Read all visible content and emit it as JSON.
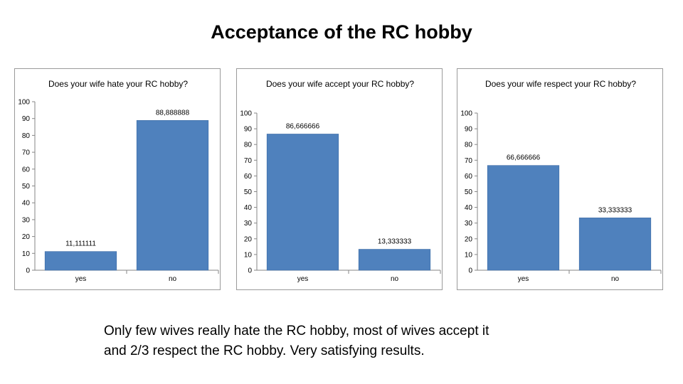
{
  "slide": {
    "title": "Acceptance of the RC hobby",
    "note_lines": [
      "Only few wives really hate the RC hobby, most of wives accept it",
      "and 2/3 respect the RC hobby. Very satisfying results."
    ]
  },
  "chart_data": [
    {
      "type": "bar",
      "title": "Does your wife hate your RC hobby?",
      "categories": [
        "yes",
        "no"
      ],
      "values": [
        11.111111,
        88.888888
      ],
      "value_labels": [
        "11,111111",
        "88,888888"
      ],
      "yticks": [
        "0",
        "10",
        "20",
        "30",
        "40",
        "50",
        "60",
        "70",
        "80",
        "90",
        "100"
      ],
      "ylim": [
        0,
        100
      ],
      "color": "#4F81BD",
      "grid": false,
      "legend": false
    },
    {
      "type": "bar",
      "title": "Does your wife accept your RC hobby?",
      "categories": [
        "yes",
        "no"
      ],
      "values": [
        86.666666,
        13.333333
      ],
      "value_labels": [
        "86,666666",
        "13,333333"
      ],
      "yticks": [
        "0",
        "10",
        "20",
        "30",
        "40",
        "50",
        "60",
        "70",
        "80",
        "90",
        "100"
      ],
      "ylim": [
        0,
        100
      ],
      "color": "#4F81BD",
      "grid": false,
      "legend": false
    },
    {
      "type": "bar",
      "title": "Does your wife respect your RC hobby?",
      "categories": [
        "yes",
        "no"
      ],
      "values": [
        66.666666,
        33.333333
      ],
      "value_labels": [
        "66,666666",
        "33,333333"
      ],
      "yticks": [
        "0",
        "10",
        "20",
        "30",
        "40",
        "50",
        "60",
        "70",
        "80",
        "90",
        "100"
      ],
      "ylim": [
        0,
        100
      ],
      "color": "#4F81BD",
      "grid": false,
      "legend": false
    }
  ]
}
